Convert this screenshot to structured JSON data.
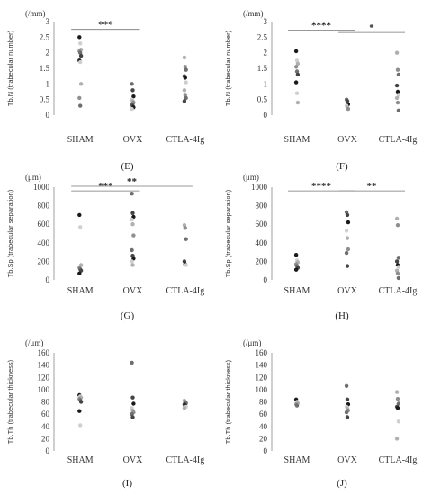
{
  "chart_data": [
    {
      "type": "scatter",
      "panel_label": "(E)",
      "unit": "(/mm)",
      "ylabel": "Tb.N (trabecular number)",
      "ylim": [
        0,
        3
      ],
      "yticks": [
        "0",
        "0.5",
        "1",
        "1.5",
        "2",
        "2.5",
        "3"
      ],
      "categories": [
        "SHAM",
        "OVX",
        "CTLA-4Ig"
      ],
      "points": [
        [
          2.5,
          2.3,
          2.1,
          2.05,
          2.0,
          1.9,
          1.75,
          1.7,
          1.0,
          0.55,
          0.3
        ],
        [
          1.0,
          0.8,
          0.6,
          0.5,
          0.45,
          0.4,
          0.35,
          0.3,
          0.25,
          0.2
        ],
        [
          1.85,
          1.55,
          1.45,
          1.25,
          1.2,
          1.05,
          0.8,
          0.65,
          0.55,
          0.45
        ]
      ],
      "brackets": [
        {
          "from": 0,
          "to": 1,
          "value": 2.75,
          "label": "***"
        }
      ]
    },
    {
      "type": "scatter",
      "panel_label": "(F)",
      "unit": "(/mm)",
      "ylabel": "Tb.N (trabecular number)",
      "ylim": [
        0,
        3
      ],
      "yticks": [
        "0",
        "0.5",
        "1",
        "1.5",
        "2",
        "2.5",
        "3"
      ],
      "categories": [
        "SHAM",
        "OVX",
        "CTLA-4Ig"
      ],
      "points": [
        [
          2.05,
          1.75,
          1.65,
          1.55,
          1.4,
          1.3,
          1.05,
          0.7,
          0.4
        ],
        [
          0.5,
          0.45,
          0.35,
          0.3,
          0.25,
          0.2
        ],
        [
          2.0,
          1.45,
          1.3,
          0.95,
          0.75,
          0.65,
          0.55,
          0.4,
          0.15
        ]
      ],
      "brackets": [
        {
          "from": 0,
          "to": 1,
          "value": 2.72,
          "label": "****"
        },
        {
          "from": 1,
          "to": 2,
          "value": 2.65,
          "label": "*"
        }
      ]
    },
    {
      "type": "scatter",
      "panel_label": "(G)",
      "unit": "(μm)",
      "ylabel": "Tb.Sp (trabecular separation)",
      "ylim": [
        0,
        1000
      ],
      "yticks": [
        "0",
        "200",
        "400",
        "600",
        "800",
        "1000"
      ],
      "categories": [
        "SHAM",
        "OVX",
        "CTLA-4Ig"
      ],
      "points": [
        [
          700,
          570,
          160,
          130,
          115,
          100,
          70
        ],
        [
          930,
          720,
          680,
          650,
          600,
          480,
          320,
          260,
          230,
          200,
          160
        ],
        [
          590,
          560,
          440,
          200,
          170,
          160
        ]
      ],
      "brackets": [
        {
          "from": 0,
          "to": 1,
          "value": 960,
          "label": "***"
        },
        {
          "from": 0,
          "to": 2,
          "value": 1010,
          "label": "**"
        }
      ]
    },
    {
      "type": "scatter",
      "panel_label": "(H)",
      "unit": "(μm)",
      "ylabel": "Tb.Sp (trabecular separation)",
      "ylim": [
        0,
        1000
      ],
      "yticks": [
        "0",
        "200",
        "400",
        "600",
        "800",
        "1000"
      ],
      "categories": [
        "SHAM",
        "OVX",
        "CTLA-4Ig"
      ],
      "points": [
        [
          270,
          210,
          190,
          170,
          150,
          130,
          110
        ],
        [
          730,
          700,
          620,
          530,
          450,
          330,
          290,
          150
        ],
        [
          660,
          590,
          240,
          200,
          160,
          140,
          100,
          70,
          20
        ]
      ],
      "brackets": [
        {
          "from": 0,
          "to": 1,
          "value": 960,
          "label": "****"
        },
        {
          "from": 1,
          "to": 2,
          "value": 960,
          "label": "**"
        }
      ]
    },
    {
      "type": "scatter",
      "panel_label": "(I)",
      "unit": "(/μm)",
      "ylabel": "Tb.Th (trabecular thickness)",
      "ylim": [
        0,
        160
      ],
      "yticks": [
        "0",
        "20",
        "40",
        "60",
        "80",
        "100",
        "120",
        "140",
        "160"
      ],
      "categories": [
        "SHAM",
        "OVX",
        "CTLA-4Ig"
      ],
      "points": [
        [
          91,
          89,
          87,
          85,
          83,
          80,
          65,
          42
        ],
        [
          144,
          87,
          77,
          70,
          66,
          63,
          60,
          55
        ],
        [
          82,
          80,
          78,
          76,
          74,
          72,
          70
        ]
      ],
      "brackets": []
    },
    {
      "type": "scatter",
      "panel_label": "(J)",
      "unit": "(/μm)",
      "ylabel": "Tb.Th (trabecular thickness)",
      "ylim": [
        0,
        160
      ],
      "yticks": [
        "0",
        "20",
        "40",
        "60",
        "80",
        "100",
        "120",
        "140",
        "160"
      ],
      "categories": [
        "SHAM",
        "OVX",
        "CTLA-4Ig"
      ],
      "points": [
        [
          84,
          80,
          78,
          76,
          74
        ],
        [
          106,
          84,
          76,
          72,
          69,
          66,
          63,
          55
        ],
        [
          96,
          85,
          77,
          72,
          70,
          48,
          20
        ]
      ],
      "brackets": []
    }
  ]
}
